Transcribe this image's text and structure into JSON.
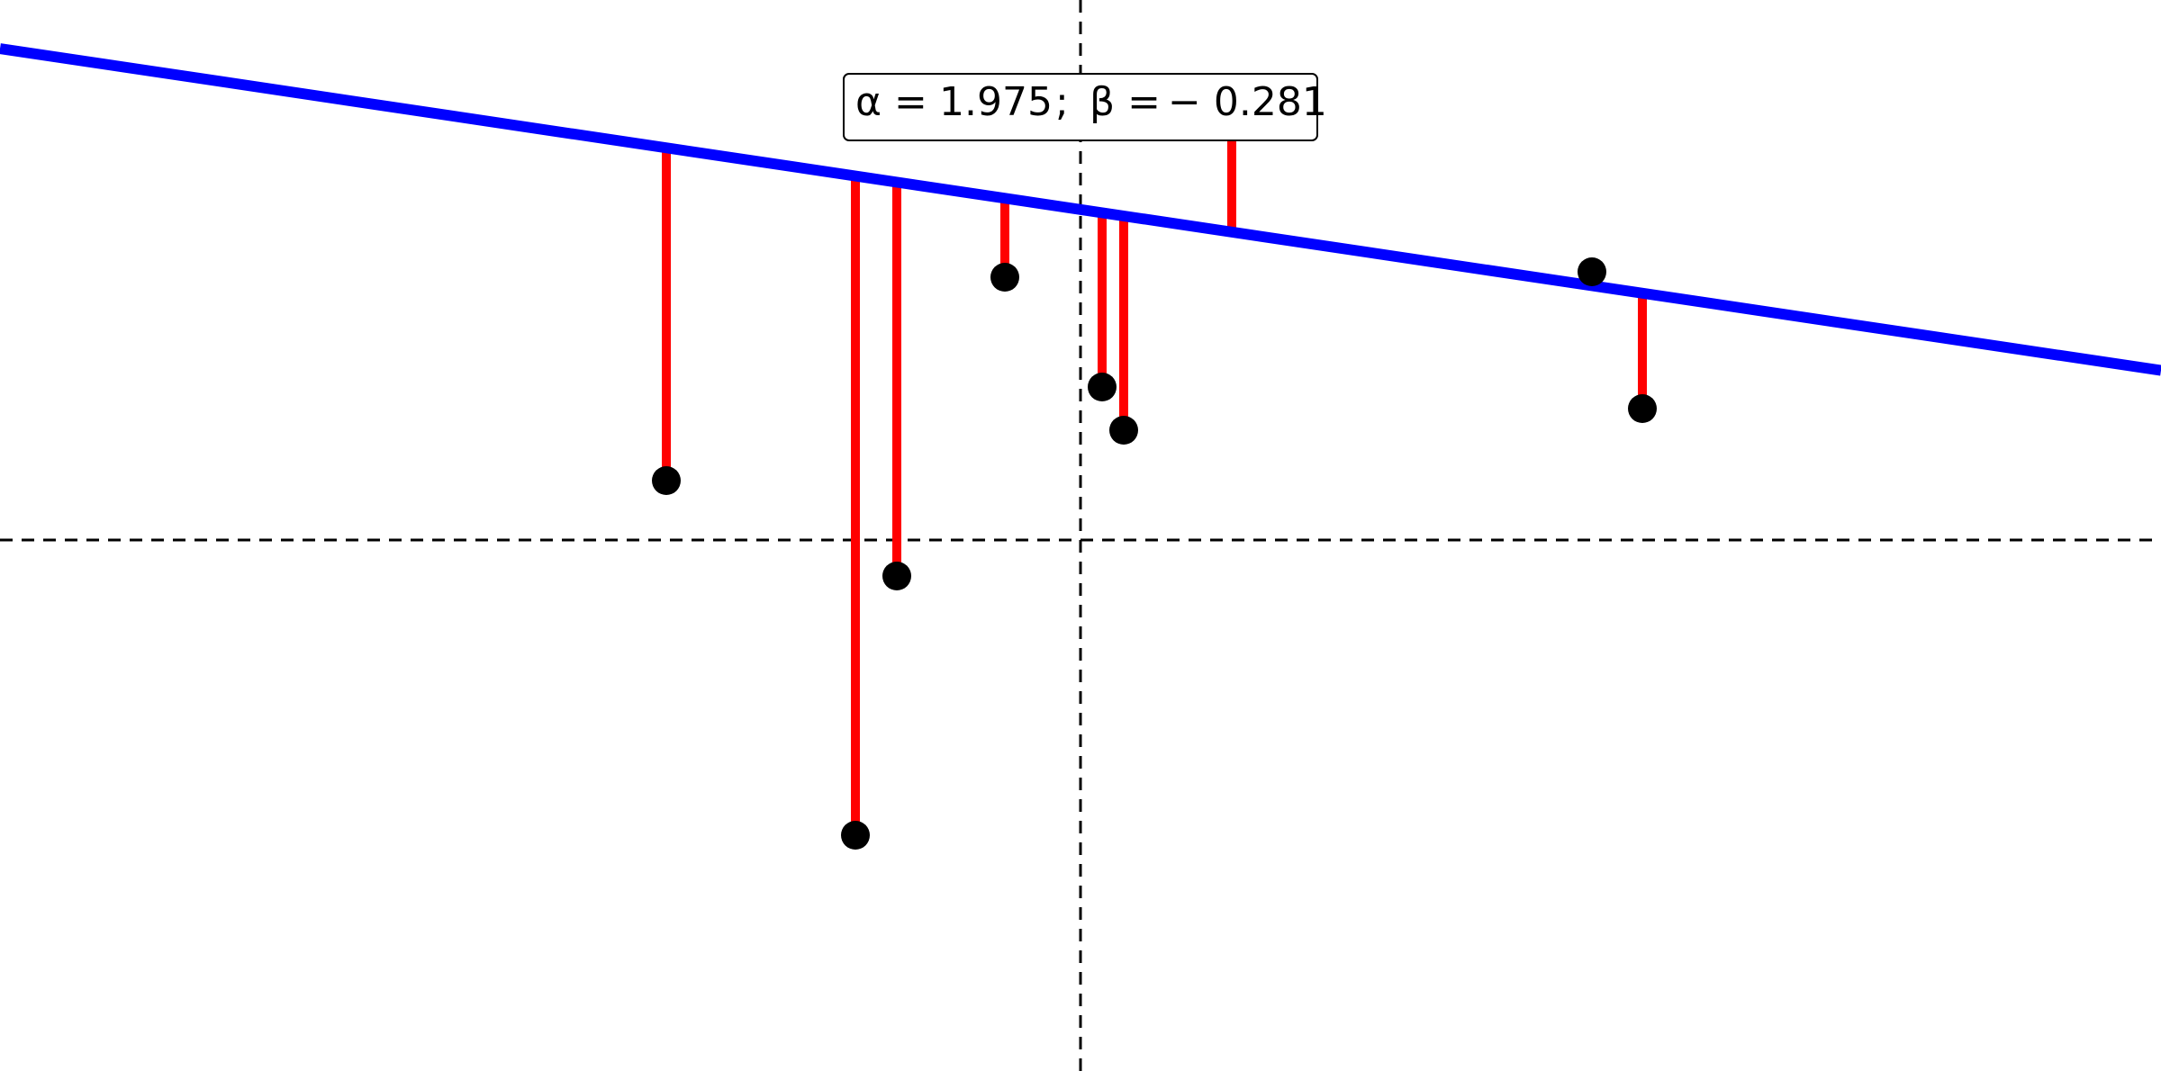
{
  "chart_data": {
    "type": "scatter",
    "title": "",
    "xlabel": "",
    "ylabel": "",
    "xlim": [
      -3.0,
      3.0
    ],
    "ylim": [
      -1.5,
      1.5
    ],
    "grid": false,
    "reference_lines": {
      "x": 0,
      "y": 0
    },
    "fit_line": {
      "alpha": 1.975,
      "beta": -0.281,
      "color": "#0000ff"
    },
    "residual_color": "#ff0000",
    "point_color": "#000000",
    "points": [
      {
        "x": -1.15,
        "y": 0.165
      },
      {
        "x": -0.625,
        "y": -0.82
      },
      {
        "x": -0.51,
        "y": -0.1
      },
      {
        "x": -0.21,
        "y": 0.73
      },
      {
        "x": 0.06,
        "y": 0.425
      },
      {
        "x": 0.12,
        "y": 0.305
      },
      {
        "x": 0.42,
        "y": 1.225
      },
      {
        "x": 1.42,
        "y": 0.745
      },
      {
        "x": 1.56,
        "y": 0.365
      }
    ],
    "annotation": {
      "alpha_symbol": "α =",
      "alpha_value": "1.975",
      "separator": ";",
      "beta_symbol": "β =",
      "beta_value": "− 0.281"
    }
  }
}
